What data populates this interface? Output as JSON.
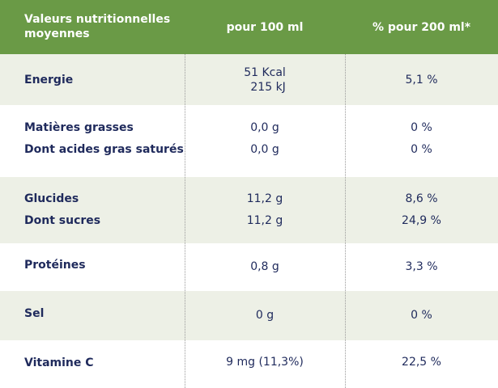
{
  "header": {
    "col1": "Valeurs nutritionnelles moyennes",
    "col2": "pour 100 ml",
    "col3": "% pour 200 ml*"
  },
  "rows": [
    {
      "label": "Energie",
      "v100": [
        "51 Kcal",
        "215 kJ"
      ],
      "v200": "5,1 %"
    },
    {
      "label": "Matières grasses",
      "v100": "0,0 g",
      "v200": "0 %"
    },
    {
      "label": "Dont acides gras saturés",
      "v100": "0,0 g",
      "v200": "0 %"
    },
    {
      "label": "Glucides",
      "v100": "11,2 g",
      "v200": "8,6 %"
    },
    {
      "label": "Dont sucres",
      "v100": "11,2 g",
      "v200": "24,9 %"
    },
    {
      "label": "Protéines",
      "v100": "0,8 g",
      "v200": "3,3 %"
    },
    {
      "label": "Sel",
      "v100": "0 g",
      "v200": "0 %"
    },
    {
      "label": "Vitamine C",
      "v100": "9 mg (11,3%)",
      "v200": "22,5 %"
    }
  ],
  "colors": {
    "header_bg": "#6a9a46",
    "shade_bg": "#edf0e6",
    "text": "#1f2a5c"
  }
}
